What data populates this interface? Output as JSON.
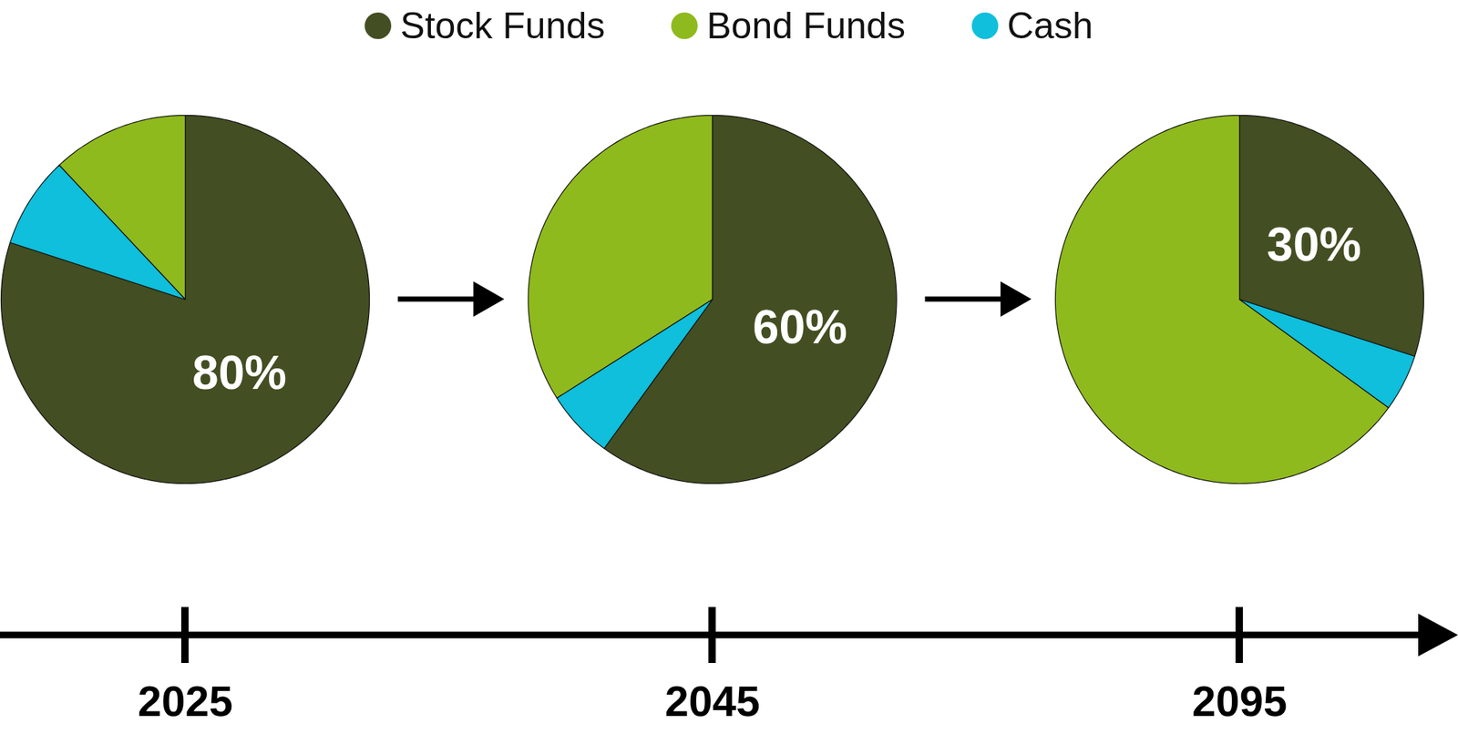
{
  "chart_data": [
    {
      "type": "pie",
      "title": "2025",
      "categories": [
        "Stock Funds",
        "Bond Funds",
        "Cash"
      ],
      "values": [
        80,
        12,
        8
      ],
      "colors": [
        "#434e22",
        "#8fba1d",
        "#0fbfdb"
      ],
      "data_labels": true,
      "value_labels": [
        "80%",
        null,
        null
      ],
      "legend": "top"
    },
    {
      "type": "pie",
      "title": "2045",
      "categories": [
        "Stock Funds",
        "Bond Funds",
        "Cash"
      ],
      "values": [
        60,
        34,
        6
      ],
      "colors": [
        "#434e22",
        "#8fba1d",
        "#0fbfdb"
      ],
      "data_labels": true,
      "value_labels": [
        "60%",
        null,
        null
      ]
    },
    {
      "type": "pie",
      "title": "2095",
      "categories": [
        "Stock Funds",
        "Bond Funds",
        "Cash"
      ],
      "values": [
        30,
        65,
        5
      ],
      "colors": [
        "#434e22",
        "#8fba1d",
        "#0fbfdb"
      ],
      "data_labels": true,
      "value_labels": [
        "30%",
        null,
        null
      ]
    }
  ]
}
